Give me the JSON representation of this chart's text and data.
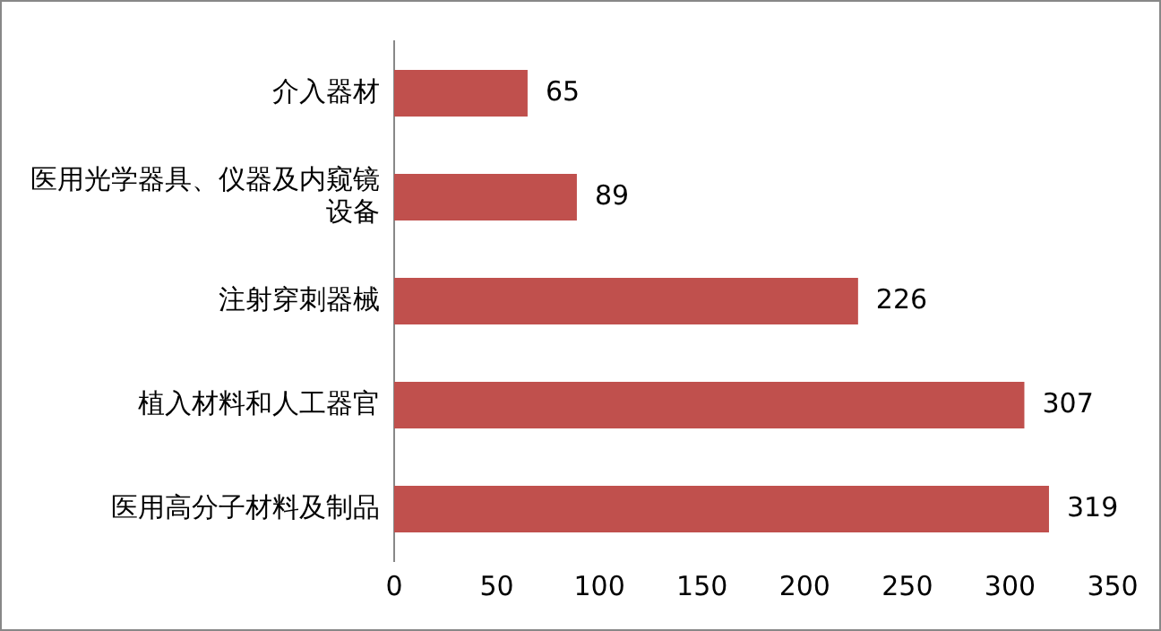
{
  "chart_data": {
    "type": "bar",
    "orientation": "horizontal",
    "categories": [
      "介入器材",
      "医用光学器具、仪器及内窥镜设备",
      "注射穿刺器械",
      "植入材料和人工器官",
      "医用高分子材料及制品"
    ],
    "values": [
      65,
      89,
      226,
      307,
      319
    ],
    "color": "#c0504d",
    "xlim": [
      0,
      350
    ],
    "xticks": [
      0,
      50,
      100,
      150,
      200,
      250,
      300,
      350
    ],
    "grid": false,
    "legend": false,
    "data_labels": true
  }
}
